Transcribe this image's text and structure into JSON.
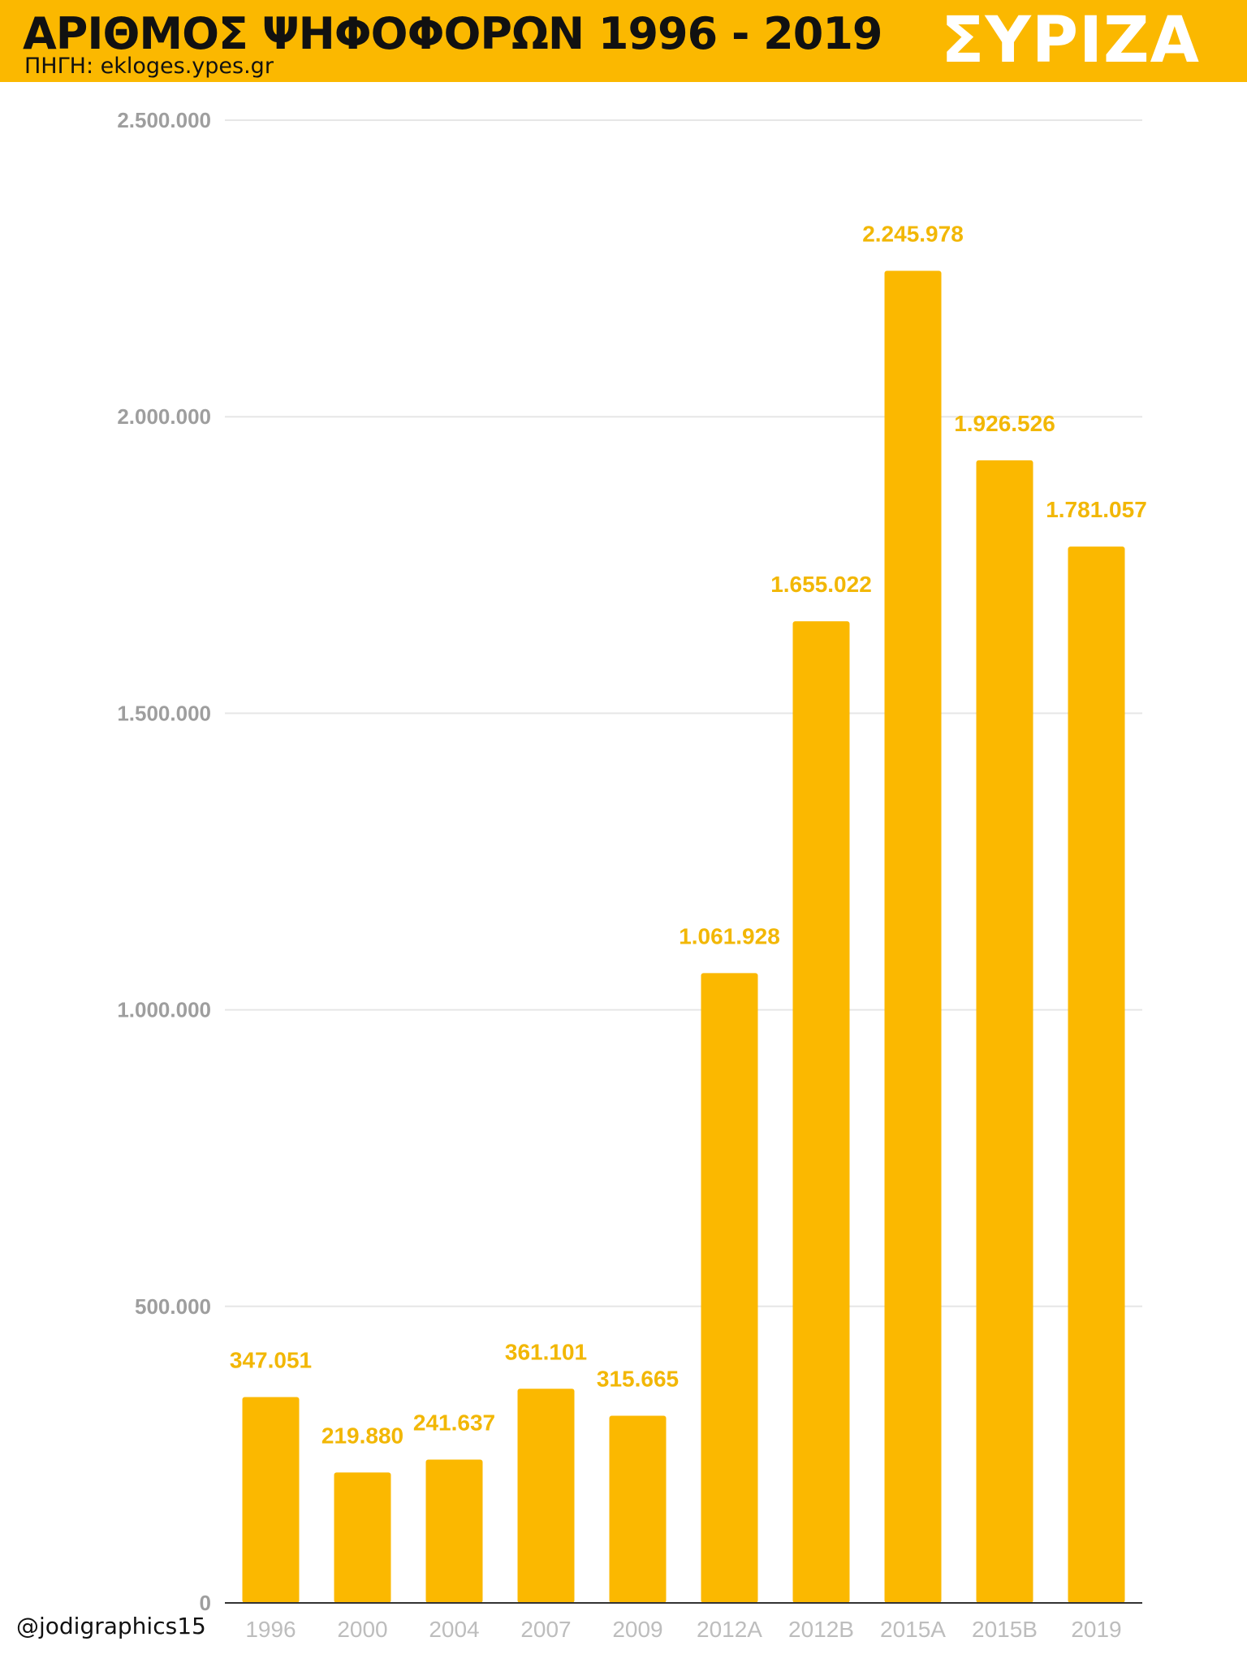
{
  "header": {
    "title": "ΑΡΙΘΜΟΣ ΨΗΦΟΦΟΡΩΝ 1996 - 2019",
    "source": "ΠΗΓΗ: ekloges.ypes.gr",
    "logo_text": "ΣΥΡΙΖΑ"
  },
  "footer": {
    "credit": "@jodigraphics15"
  },
  "colors": {
    "brand_yellow": "#FBB800",
    "bar": "#FBB800",
    "data_label": "#F2B705",
    "gridline": "#E6E6E6",
    "tick_label": "#9E9E9E"
  },
  "chart_data": {
    "type": "bar",
    "title": "ΑΡΙΘΜΟΣ ΨΗΦΟΦΟΡΩΝ 1996 - 2019",
    "xlabel": "",
    "ylabel": "",
    "categories": [
      "1996",
      "2000",
      "2004",
      "2007",
      "2009",
      "2012A",
      "2012B",
      "2015A",
      "2015B",
      "2019"
    ],
    "values": [
      347051,
      219880,
      241637,
      361101,
      315665,
      1061928,
      1655022,
      2245978,
      1926526,
      1781057
    ],
    "value_labels": [
      "347.051",
      "219.880",
      "241.637",
      "361.101",
      "315.665",
      "1.061.928",
      "1.655.022",
      "2.245.978",
      "1.926.526",
      "1.781.057"
    ],
    "ylim": [
      0,
      2500000
    ],
    "yticks": [
      0,
      500000,
      1000000,
      1500000,
      2000000,
      2500000
    ],
    "ytick_labels": [
      "0",
      "500.000",
      "1.000.000",
      "1.500.000",
      "2.000.000",
      "2.500.000"
    ],
    "grid": true,
    "legend": "none"
  }
}
